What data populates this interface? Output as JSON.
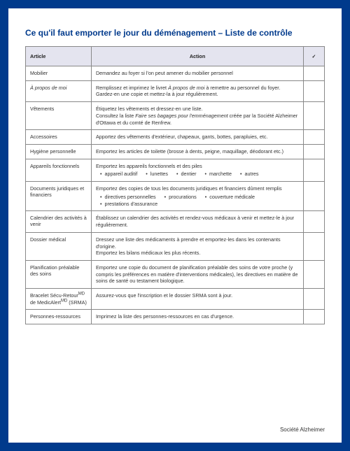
{
  "title": "Ce qu'il faut emporter le jour du déménagement – Liste de contrôle",
  "columns": {
    "article": "Article",
    "action": "Action",
    "check": "✓"
  },
  "footer": "Société Alzheimer",
  "rows": [
    {
      "article": "Mobilier",
      "action": "Demandez au foyer si l'on peut amener du mobilier personnel"
    },
    {
      "article_html": "<em class='italic'>À propos de moi</em>",
      "action_html": "Remplissez et imprimez le livret <em class='italic'>À propos de moi</em> à remettre au personnel du foyer. Gardez-en une copie et mettez-la à jour régulièrement."
    },
    {
      "article": "Vêtements",
      "action_html": "Étiquetez les vêtements et dressez-en une liste.<br>Consultez la liste <em class='italic'>Faire ses bagages pour l'emménagement</em> créée par la Société Alzheimer d'Ottawa et du comté de Renfrew."
    },
    {
      "article": "Accessoires",
      "action": "Apportez des vêtements d'extérieur, chapeaux, gants, bottes, parapluies, etc."
    },
    {
      "article": "Hygiène personnelle",
      "action": "Emportez les articles de toilette (brosse à dents, peigne, maquillage, déodorant etc.)"
    },
    {
      "article": "Appareils fonctionnels",
      "action_html": "Emportez les appareils fonctionnels et des piles<div class='bullets'><span>appareil auditif</span><span>lunettes</span><span>dentier</span><span>marchette</span><span>autres</span></div>"
    },
    {
      "article": "Documents juridiques et financiers",
      "action_html": "Emportez des copies de tous les documents juridiques et financiers dûment remplis<div class='bullets'><span>directives personnelles</span><span>procurations</span><span>couverture médicale</span><span>prestations d'assurance</span></div>"
    },
    {
      "article": "Calendrier des activités à venir",
      "action": "Établissez un calendrier des activités et rendez-vous médicaux à venir et mettez-le à jour régulièrement."
    },
    {
      "article": "Dossier médical",
      "action_html": "Dressez une liste des médicaments à prendre et emportez-les dans les contenants d'origine.<br>Emportez les bilans médicaux les plus récents."
    },
    {
      "article": "Planification préalable des soins",
      "action": "Emportez une copie du document de planification préalable des soins de votre proche (y compris les préférences en matière d'interventions médicales), les directives en matière de soins de santé ou testament biologique."
    },
    {
      "article_html": "Bracelet Sécu-Retour<sup>MD</sup> de MedicAlert<sup>MD</sup> (SRMA)",
      "action": "Assurez-vous que l'inscription et le dossier SRMA sont à jour."
    },
    {
      "article": "Personnes-ressources",
      "action": "Imprimez la liste des personnes-ressources en cas d'urgence."
    }
  ]
}
